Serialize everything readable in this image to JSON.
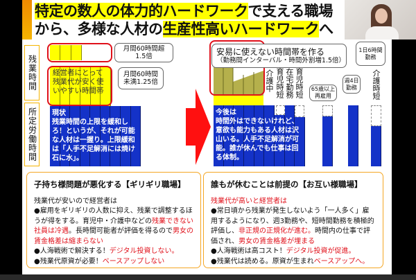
{
  "title": {
    "line1_hl": "特定の数人の体力的ハードワーク",
    "line1_rest": "で支える職場",
    "line2_pre": "から、多様な人材の",
    "line2_hl": "生産性高いハードワーク",
    "line2_post": "へ"
  },
  "left_diagram": {
    "label_overtime": "残業時間",
    "label_regular": "所定労働時間",
    "callout_over60": "月間60時間超\n1.5倍",
    "callout_under60": "月間60時間\n未満1.25倍",
    "yellow_text": "経営者にとって残業代が安く使いやすい時間帯",
    "blue_title": "現状",
    "blue_text": "残業時間の上限を緩和しろ！というが、それが可能な人材は一握り。上限緩和は「人手不足解消には焼け石に水」。"
  },
  "right_diagram": {
    "callout_main": "安易に使えない時間帯を作る",
    "callout_sub": "（勤務間インターバル・時間外割増1.5倍）",
    "label_care": "介護中",
    "label_childcare_short": "育児時短",
    "label_remote": "在宅勤務",
    "label_childcare_short2": "育児時短",
    "callout_65": "65歳以上\n再雇用",
    "callout_week4": "週4日\n勤務",
    "callout_6h": "1日6時間\n勤務",
    "label_care_short": "介護時短",
    "blue_title": "今後は",
    "blue_text": "時間外はできないけれど、意欲も能力もある人材は沢山いる。人手不足解消が可能。誰が休んでも仕事は回る体制。"
  },
  "panel_left": {
    "heading": "子持ち様問題が悪化する【ギリギリ職場】",
    "intro": "残業代が安いので経営者は",
    "b1a": "●雇用をギリギリの人数に抑え、残業で調整するほうが得をする。育児中・介護中などの",
    "b1r": "残業できない社員は冷遇",
    "b1b": "。長時間可能者が評価を得るので",
    "b1r2": "男女の賃金格差は縮まらない",
    "b2a": "●人海戦術で解決する！",
    "b2r": "デジタル投資しない。",
    "b3a": "●残業代原資が必要！",
    "b3r": "ベースアップしない"
  },
  "panel_right": {
    "heading": "誰もが休むことは前提の【お互い様職場】",
    "intro": "残業代が高いと経営者は",
    "b1a": "●常日頃から残業が発生しないよう「一人多く」雇用するようになり、週3勤務や、短時間勤務を積極的評価し、",
    "b1r": "非正規の正規化が進む。",
    "b1b": "時間内の仕事で評価され、",
    "b1r2": "男女の賃金格差が埋まる",
    "b2a": "●人海戦術は高コスト！",
    "b2r": "デジタル投資が促進。",
    "b3a": "●残業代は読める。原資が生まれ",
    "b3r": "ベースアップへ。"
  },
  "colors": {
    "highlight": "#ffff00",
    "blue": "#1432c8",
    "red": "#e0101a",
    "accent": "#f5a623"
  }
}
